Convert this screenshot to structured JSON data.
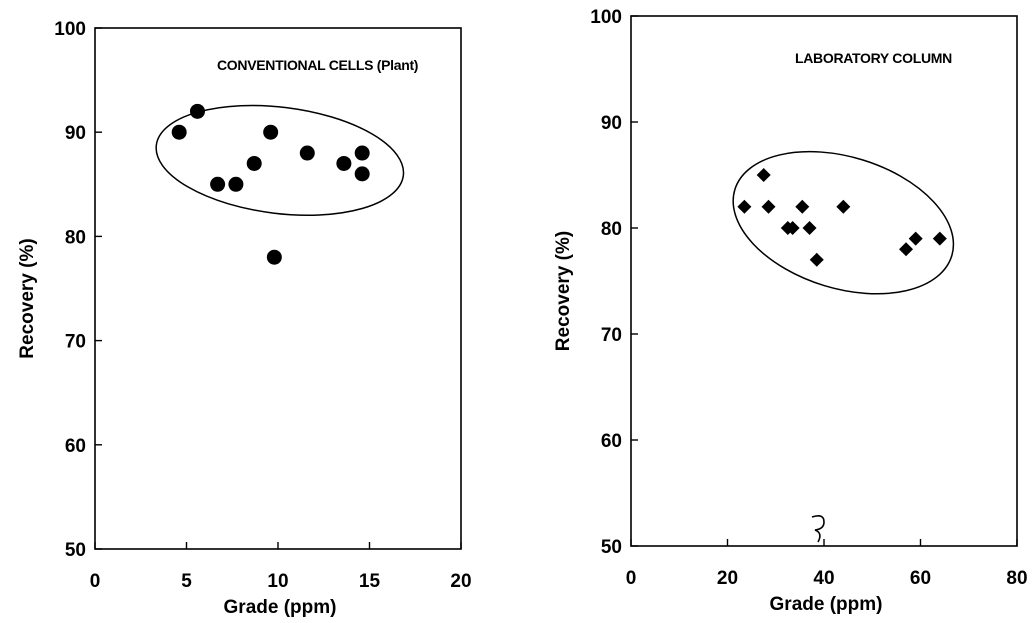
{
  "chart_data": [
    {
      "type": "scatter",
      "xlabel": "Grade (ppm)",
      "ylabel": "Recovery (%)",
      "annotation": "CONVENTIONAL CELLS (Plant)",
      "xlim": [
        0,
        20
      ],
      "ylim": [
        50,
        100
      ],
      "xticks": [
        0,
        5,
        10,
        15,
        20
      ],
      "yticks": [
        50,
        60,
        70,
        80,
        90,
        100
      ],
      "marker": "circle",
      "grid": false,
      "series": [
        {
          "x": [
            4.6,
            5.6,
            6.7,
            7.7,
            8.7,
            9.6,
            9.8,
            11.6,
            13.6,
            14.6,
            14.6
          ],
          "y": [
            90,
            92,
            85,
            85,
            87,
            90,
            78,
            88,
            87,
            88,
            86
          ]
        }
      ],
      "ellipse": {
        "cx": 10.1,
        "cy": 87.3,
        "rx": 6.8,
        "ry": 5.1,
        "angle_deg": 7
      }
    },
    {
      "type": "scatter",
      "xlabel": "Grade (ppm)",
      "ylabel": "Recovery (%)",
      "annotation": "LABORATORY COLUMN",
      "xlim": [
        0,
        80
      ],
      "ylim": [
        50,
        100
      ],
      "xticks": [
        0,
        20,
        40,
        60,
        80
      ],
      "yticks": [
        50,
        60,
        70,
        80,
        90,
        100
      ],
      "marker": "diamond",
      "grid": false,
      "series": [
        {
          "x": [
            23.5,
            27.5,
            28.5,
            32.5,
            33.5,
            35.5,
            37,
            38.5,
            44,
            57,
            59,
            64
          ],
          "y": [
            82,
            85,
            82,
            80,
            80,
            82,
            80,
            77,
            82,
            78,
            79,
            79
          ]
        }
      ],
      "ellipse": {
        "cx": 44,
        "cy": 80.5,
        "rx": 23.5,
        "ry": 6.2,
        "angle_deg": 17
      }
    }
  ]
}
